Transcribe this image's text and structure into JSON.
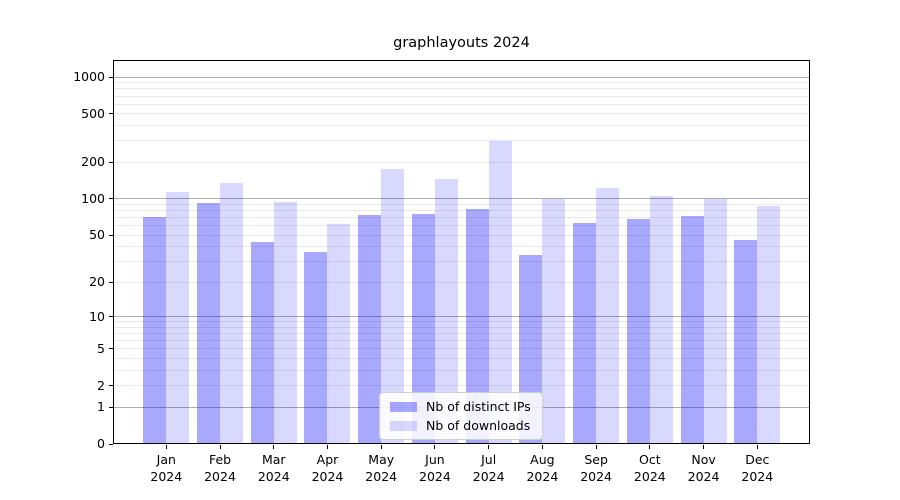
{
  "colors": {
    "ips_bar": "rgba(0,0,255,0.34)",
    "downloads_bar": "rgba(0,0,255,0.15)",
    "grid_major": "#adadad",
    "grid_minor": "#e9e9e9",
    "axis": "#000000",
    "legend_bg": "rgba(255,255,255,0.85)",
    "legend_border": "#cfcfcf"
  },
  "axes": {
    "y_tick_values": [
      0,
      1,
      2,
      5,
      10,
      20,
      50,
      100,
      200,
      500,
      1000
    ],
    "y_tick_labels": [
      "0",
      "1",
      "2",
      "5",
      "10",
      "20",
      "50",
      "100",
      "200",
      "500",
      "1000"
    ],
    "major_grid_values": [
      1,
      10,
      100,
      1000
    ],
    "minor_grid_values": [
      2,
      3,
      4,
      5,
      6,
      7,
      8,
      9,
      20,
      30,
      40,
      50,
      60,
      70,
      80,
      90,
      200,
      300,
      400,
      500,
      600,
      700,
      800,
      900
    ],
    "x_tick_labels": [
      [
        "Jan",
        "2024"
      ],
      [
        "Feb",
        "2024"
      ],
      [
        "Mar",
        "2024"
      ],
      [
        "Apr",
        "2024"
      ],
      [
        "May",
        "2024"
      ],
      [
        "Jun",
        "2024"
      ],
      [
        "Jul",
        "2024"
      ],
      [
        "Aug",
        "2024"
      ],
      [
        "Sep",
        "2024"
      ],
      [
        "Oct",
        "2024"
      ],
      [
        "Nov",
        "2024"
      ],
      [
        "Dec",
        "2024"
      ]
    ]
  },
  "chart_data": {
    "type": "bar",
    "title": "graphlayouts 2024",
    "categories": [
      "Jan 2024",
      "Feb 2024",
      "Mar 2024",
      "Apr 2024",
      "May 2024",
      "Jun 2024",
      "Jul 2024",
      "Aug 2024",
      "Sep 2024",
      "Oct 2024",
      "Nov 2024",
      "Dec 2024"
    ],
    "series": [
      {
        "name": "Nb of distinct IPs",
        "color": "rgba(0,0,255,0.34)",
        "values": [
          71,
          92,
          44,
          36,
          73,
          75,
          83,
          34,
          63,
          68,
          72,
          46
        ]
      },
      {
        "name": "Nb of downloads",
        "color": "rgba(0,0,255,0.15)",
        "values": [
          114,
          135,
          94,
          62,
          175,
          146,
          300,
          99,
          123,
          106,
          100,
          88
        ]
      }
    ],
    "xlabel": "",
    "ylabel": "",
    "y_scale": "log10(value+1)",
    "ylim": [
      0,
      1380
    ],
    "grid": true,
    "legend_position": "lower center"
  }
}
